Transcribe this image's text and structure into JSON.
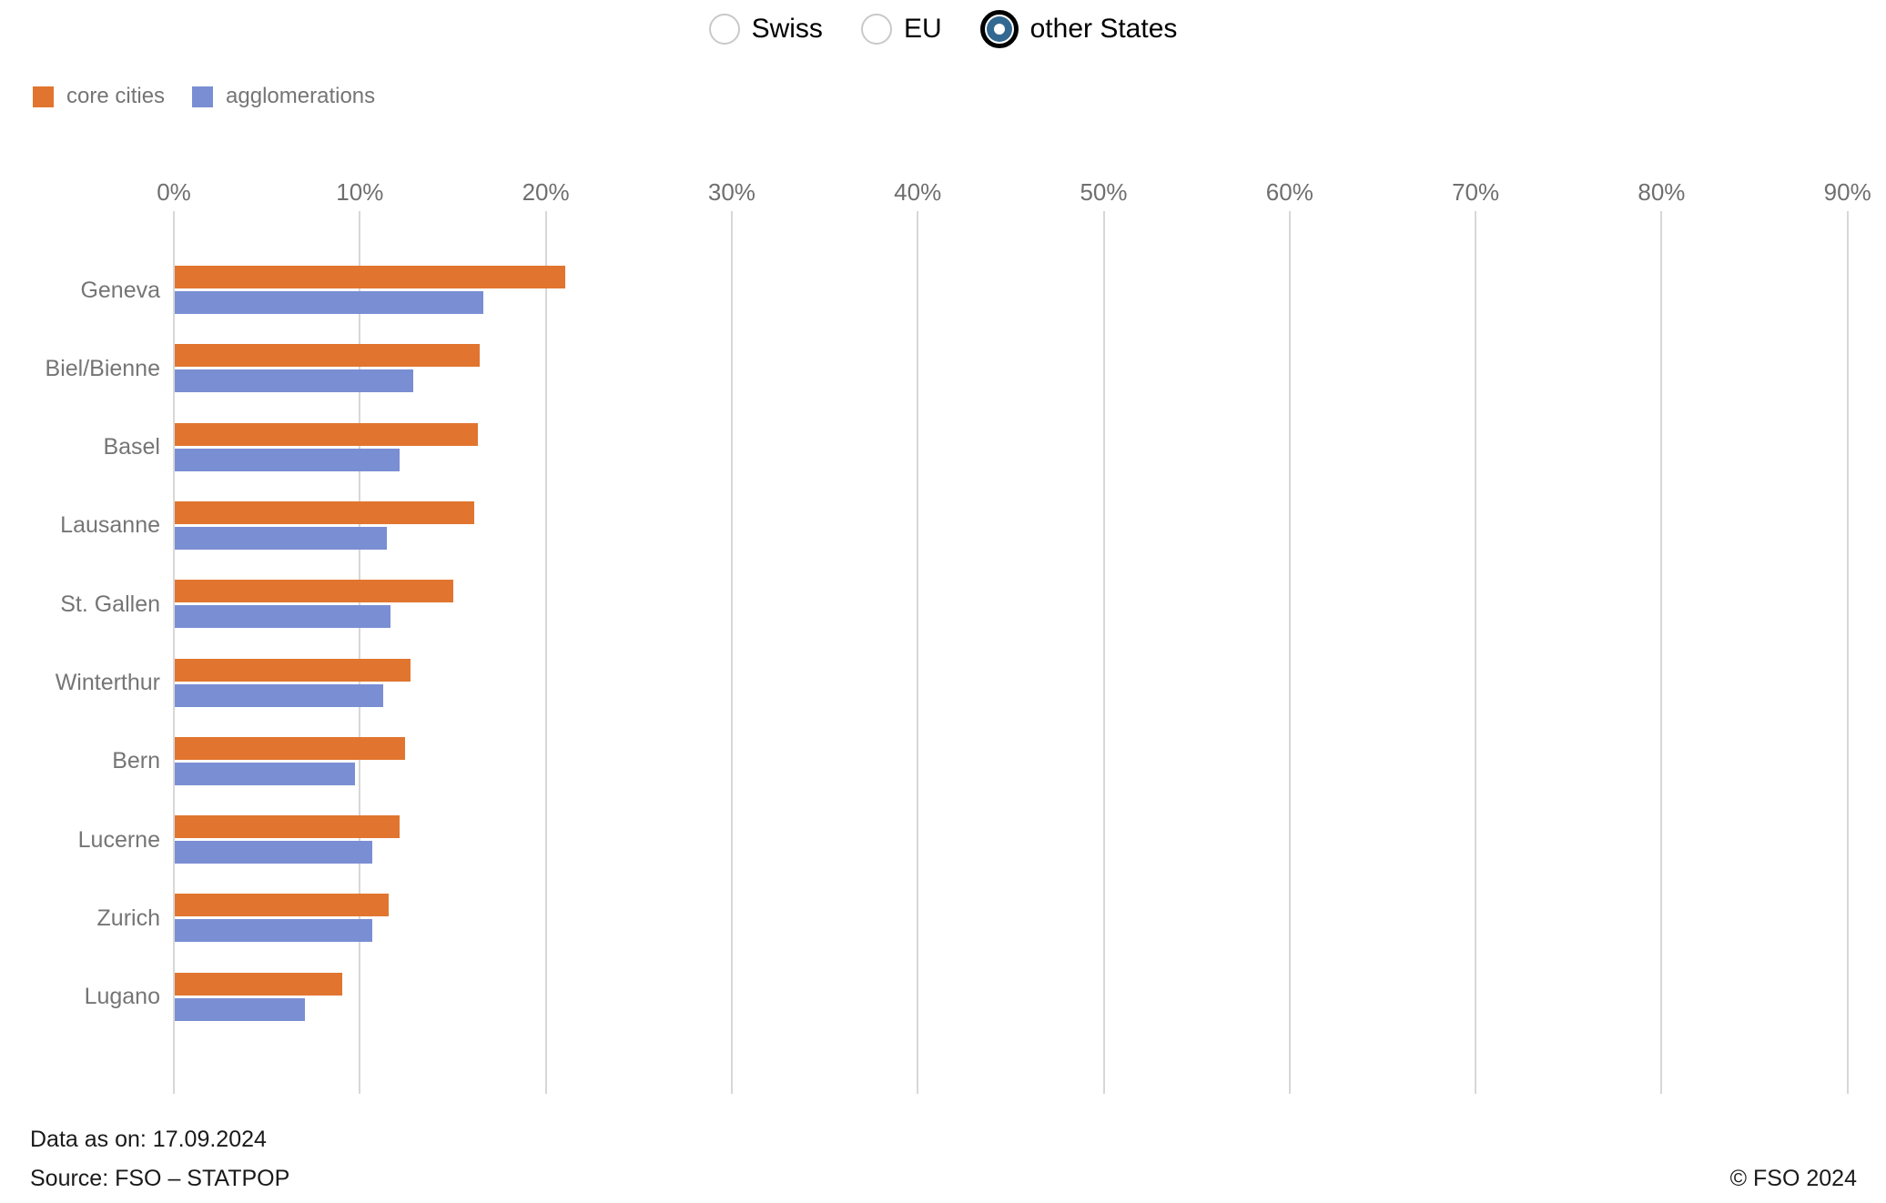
{
  "filter": {
    "options": [
      {
        "label": "Swiss",
        "selected": false
      },
      {
        "label": "EU",
        "selected": false
      },
      {
        "label": "other States",
        "selected": true
      }
    ]
  },
  "chart_data": {
    "type": "bar",
    "orientation": "horizontal",
    "title": "",
    "categories": [
      "Geneva",
      "Biel/Bienne",
      "Basel",
      "Lausanne",
      "St. Gallen",
      "Winterthur",
      "Bern",
      "Lucerne",
      "Zurich",
      "Lugano"
    ],
    "series": [
      {
        "name": "core cities",
        "color": "#E1752F",
        "values": [
          21.0,
          16.4,
          16.3,
          16.1,
          15.0,
          12.7,
          12.4,
          12.1,
          11.5,
          9.0
        ]
      },
      {
        "name": "agglomerations",
        "color": "#7A8ED3",
        "values": [
          16.6,
          12.8,
          12.1,
          11.4,
          11.6,
          11.2,
          9.7,
          10.6,
          10.6,
          7.0
        ]
      }
    ],
    "x_ticks": [
      "0%",
      "10%",
      "20%",
      "30%",
      "40%",
      "50%",
      "60%",
      "70%",
      "80%",
      "90%"
    ],
    "xlim": [
      0,
      90
    ],
    "unit": "%",
    "grid": true,
    "legend_position": "top-left"
  },
  "footer": {
    "data_as_on": "Data as on: 17.09.2024",
    "source": "Source: FSO – STATPOP",
    "copyright": "© FSO 2024"
  },
  "colors": {
    "core_cities": "#E1752F",
    "agglomerations": "#7A8ED3",
    "radio_selected": "#336890",
    "gridline": "#d7d7d7",
    "label_gray": "#757575"
  }
}
